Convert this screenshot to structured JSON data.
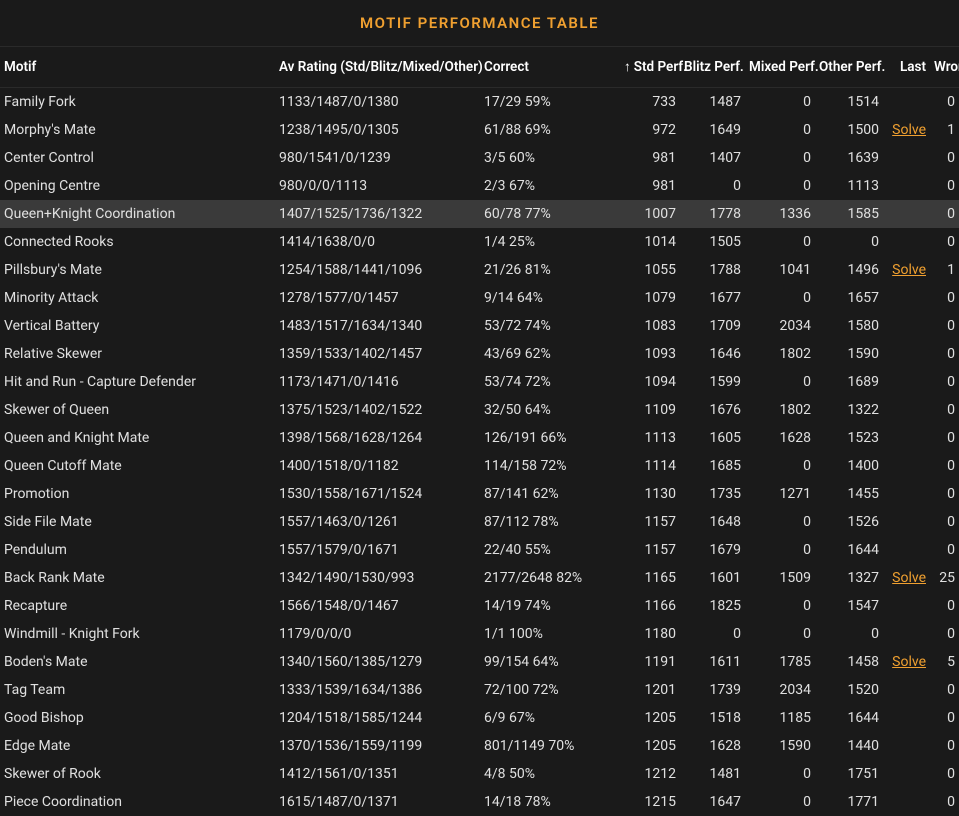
{
  "title": "MOTIF PERFORMANCE TABLE",
  "colors": {
    "background": "#1a1a1a",
    "text": "#e0e0e0",
    "accent": "#f0a030",
    "highlight_row": "#3a3a3a",
    "hover_row": "#2a2a2a",
    "header_text": "#ffffff"
  },
  "columns": [
    {
      "label": "Motif",
      "key": "motif",
      "align": "left"
    },
    {
      "label": "Av Rating (Std/Blitz/Mixed/Other)",
      "key": "rating",
      "align": "left"
    },
    {
      "label": "Correct",
      "key": "correct",
      "align": "left"
    },
    {
      "label": "Std Perf.",
      "key": "std",
      "align": "right",
      "sorted": true,
      "sort_dir": "asc"
    },
    {
      "label": "Blitz Perf.",
      "key": "blitz",
      "align": "right"
    },
    {
      "label": "Mixed Perf.",
      "key": "mixed",
      "align": "right"
    },
    {
      "label": "Other Perf.",
      "key": "other",
      "align": "right"
    },
    {
      "label": "Last",
      "key": "last",
      "align": "right"
    },
    {
      "label": "Wrong",
      "key": "wrong",
      "align": "right"
    }
  ],
  "solve_label": "Solve",
  "sort_arrow": "↑",
  "highlighted_row_index": 4,
  "rows": [
    {
      "motif": "Family Fork",
      "rating": "1133/1487/0/1380",
      "correct": "17/29 59%",
      "std": "733",
      "blitz": "1487",
      "mixed": "0",
      "other": "1514",
      "last": "",
      "wrong": "0"
    },
    {
      "motif": "Morphy's Mate",
      "rating": "1238/1495/0/1305",
      "correct": "61/88 69%",
      "std": "972",
      "blitz": "1649",
      "mixed": "0",
      "other": "1500",
      "last": "Solve",
      "wrong": "1"
    },
    {
      "motif": "Center Control",
      "rating": "980/1541/0/1239",
      "correct": "3/5 60%",
      "std": "981",
      "blitz": "1407",
      "mixed": "0",
      "other": "1639",
      "last": "",
      "wrong": "0"
    },
    {
      "motif": "Opening Centre",
      "rating": "980/0/0/1113",
      "correct": "2/3 67%",
      "std": "981",
      "blitz": "0",
      "mixed": "0",
      "other": "1113",
      "last": "",
      "wrong": "0"
    },
    {
      "motif": "Queen+Knight Coordination",
      "rating": "1407/1525/1736/1322",
      "correct": "60/78 77%",
      "std": "1007",
      "blitz": "1778",
      "mixed": "1336",
      "other": "1585",
      "last": "",
      "wrong": "0"
    },
    {
      "motif": "Connected Rooks",
      "rating": "1414/1638/0/0",
      "correct": "1/4 25%",
      "std": "1014",
      "blitz": "1505",
      "mixed": "0",
      "other": "0",
      "last": "",
      "wrong": "0"
    },
    {
      "motif": "Pillsbury's Mate",
      "rating": "1254/1588/1441/1096",
      "correct": "21/26 81%",
      "std": "1055",
      "blitz": "1788",
      "mixed": "1041",
      "other": "1496",
      "last": "Solve",
      "wrong": "1"
    },
    {
      "motif": "Minority Attack",
      "rating": "1278/1577/0/1457",
      "correct": "9/14 64%",
      "std": "1079",
      "blitz": "1677",
      "mixed": "0",
      "other": "1657",
      "last": "",
      "wrong": "0"
    },
    {
      "motif": "Vertical Battery",
      "rating": "1483/1517/1634/1340",
      "correct": "53/72 74%",
      "std": "1083",
      "blitz": "1709",
      "mixed": "2034",
      "other": "1580",
      "last": "",
      "wrong": "0"
    },
    {
      "motif": "Relative Skewer",
      "rating": "1359/1533/1402/1457",
      "correct": "43/69 62%",
      "std": "1093",
      "blitz": "1646",
      "mixed": "1802",
      "other": "1590",
      "last": "",
      "wrong": "0"
    },
    {
      "motif": "Hit and Run - Capture Defender",
      "rating": "1173/1471/0/1416",
      "correct": "53/74 72%",
      "std": "1094",
      "blitz": "1599",
      "mixed": "0",
      "other": "1689",
      "last": "",
      "wrong": "0"
    },
    {
      "motif": "Skewer of Queen",
      "rating": "1375/1523/1402/1522",
      "correct": "32/50 64%",
      "std": "1109",
      "blitz": "1676",
      "mixed": "1802",
      "other": "1322",
      "last": "",
      "wrong": "0"
    },
    {
      "motif": "Queen and Knight Mate",
      "rating": "1398/1568/1628/1264",
      "correct": "126/191 66%",
      "std": "1113",
      "blitz": "1605",
      "mixed": "1628",
      "other": "1523",
      "last": "",
      "wrong": "0"
    },
    {
      "motif": "Queen Cutoff Mate",
      "rating": "1400/1518/0/1182",
      "correct": "114/158 72%",
      "std": "1114",
      "blitz": "1685",
      "mixed": "0",
      "other": "1400",
      "last": "",
      "wrong": "0"
    },
    {
      "motif": "Promotion",
      "rating": "1530/1558/1671/1524",
      "correct": "87/141 62%",
      "std": "1130",
      "blitz": "1735",
      "mixed": "1271",
      "other": "1455",
      "last": "",
      "wrong": "0"
    },
    {
      "motif": "Side File Mate",
      "rating": "1557/1463/0/1261",
      "correct": "87/112 78%",
      "std": "1157",
      "blitz": "1648",
      "mixed": "0",
      "other": "1526",
      "last": "",
      "wrong": "0"
    },
    {
      "motif": "Pendulum",
      "rating": "1557/1579/0/1671",
      "correct": "22/40 55%",
      "std": "1157",
      "blitz": "1679",
      "mixed": "0",
      "other": "1644",
      "last": "",
      "wrong": "0"
    },
    {
      "motif": "Back Rank Mate",
      "rating": "1342/1490/1530/993",
      "correct": "2177/2648 82%",
      "std": "1165",
      "blitz": "1601",
      "mixed": "1509",
      "other": "1327",
      "last": "Solve",
      "wrong": "25"
    },
    {
      "motif": "Recapture",
      "rating": "1566/1548/0/1467",
      "correct": "14/19 74%",
      "std": "1166",
      "blitz": "1825",
      "mixed": "0",
      "other": "1547",
      "last": "",
      "wrong": "0"
    },
    {
      "motif": "Windmill - Knight Fork",
      "rating": "1179/0/0/0",
      "correct": "1/1 100%",
      "std": "1180",
      "blitz": "0",
      "mixed": "0",
      "other": "0",
      "last": "",
      "wrong": "0"
    },
    {
      "motif": "Boden's Mate",
      "rating": "1340/1560/1385/1279",
      "correct": "99/154 64%",
      "std": "1191",
      "blitz": "1611",
      "mixed": "1785",
      "other": "1458",
      "last": "Solve",
      "wrong": "5"
    },
    {
      "motif": "Tag Team",
      "rating": "1333/1539/1634/1386",
      "correct": "72/100 72%",
      "std": "1201",
      "blitz": "1739",
      "mixed": "2034",
      "other": "1520",
      "last": "",
      "wrong": "0"
    },
    {
      "motif": "Good Bishop",
      "rating": "1204/1518/1585/1244",
      "correct": "6/9 67%",
      "std": "1205",
      "blitz": "1518",
      "mixed": "1185",
      "other": "1644",
      "last": "",
      "wrong": "0"
    },
    {
      "motif": "Edge Mate",
      "rating": "1370/1536/1559/1199",
      "correct": "801/1149 70%",
      "std": "1205",
      "blitz": "1628",
      "mixed": "1590",
      "other": "1440",
      "last": "",
      "wrong": "0"
    },
    {
      "motif": "Skewer of Rook",
      "rating": "1412/1561/0/1351",
      "correct": "4/8 50%",
      "std": "1212",
      "blitz": "1481",
      "mixed": "0",
      "other": "1751",
      "last": "",
      "wrong": "0"
    },
    {
      "motif": "Piece Coordination",
      "rating": "1615/1487/0/1371",
      "correct": "14/18 78%",
      "std": "1215",
      "blitz": "1647",
      "mixed": "0",
      "other": "1771",
      "last": "",
      "wrong": "0"
    }
  ]
}
